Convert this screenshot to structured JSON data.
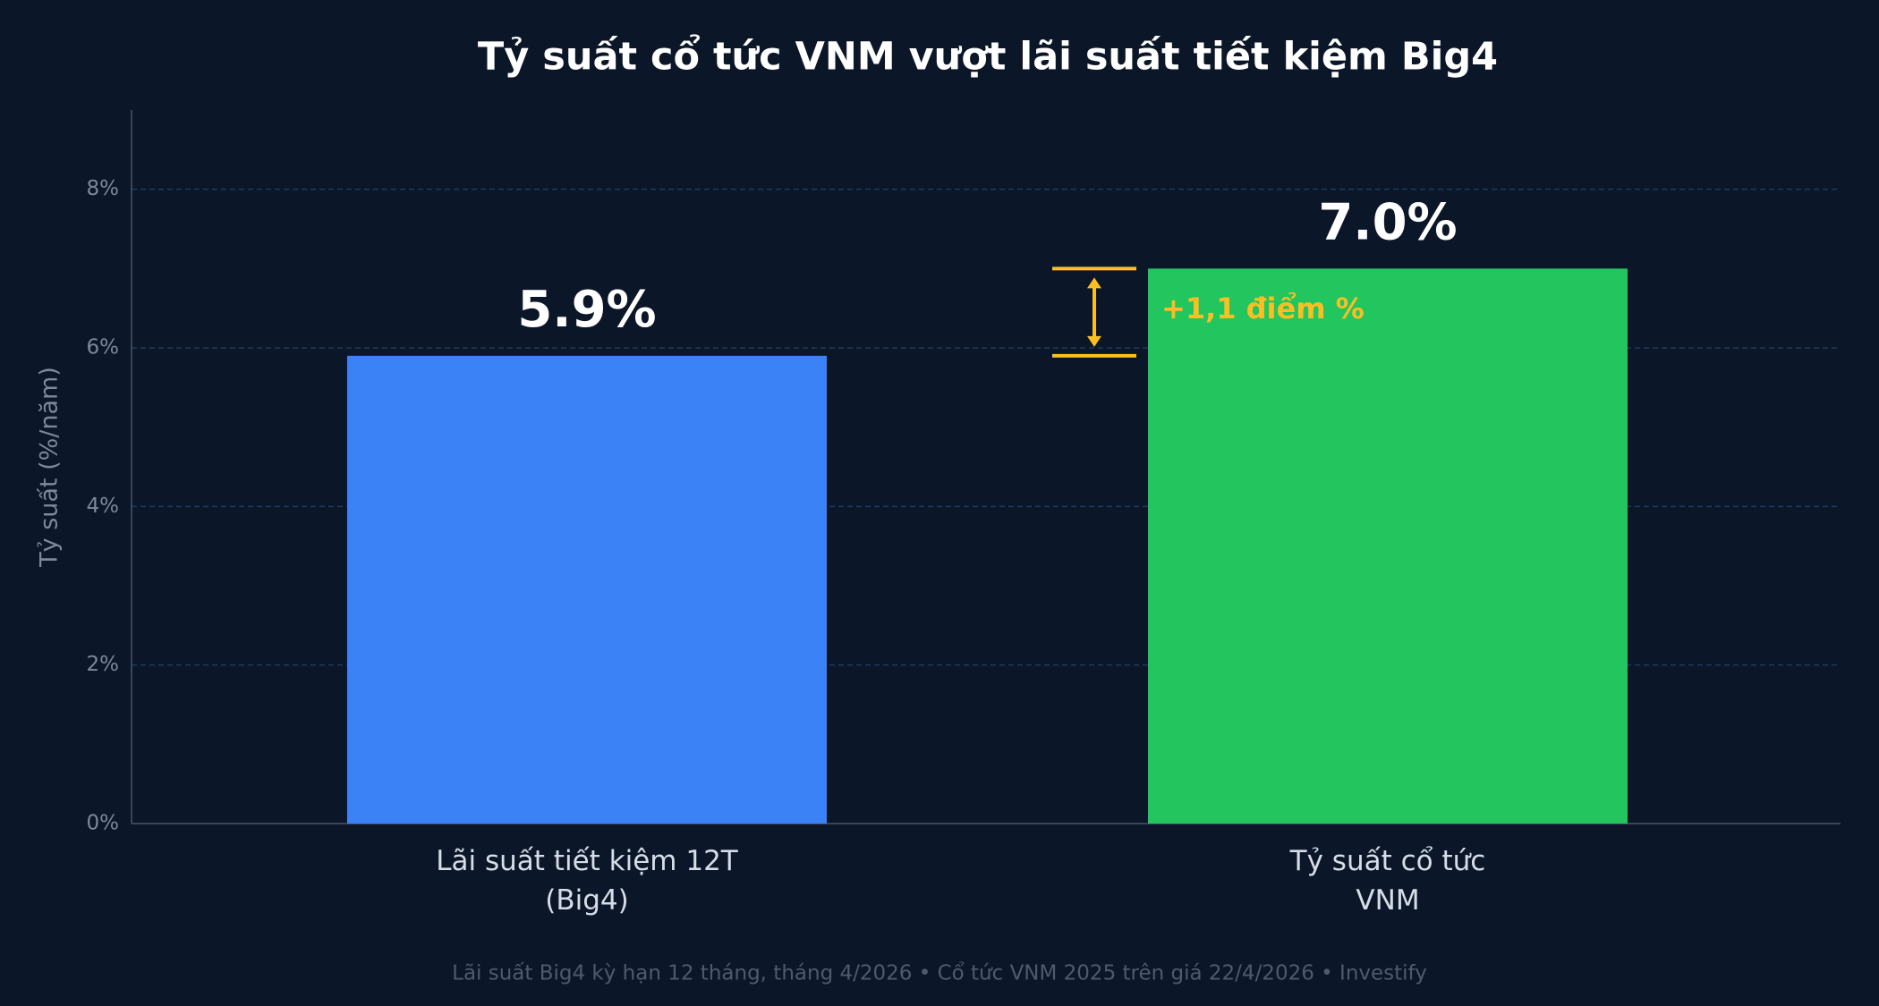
{
  "chart_data": {
    "type": "bar",
    "title": "Tỷ suất cổ tức VNM vượt lãi suất tiết kiệm Big4",
    "y_label": "Tỷ suất (%/năm)",
    "categories": [
      "Lãi suất tiết kiệm 12T\n(Big4)",
      "Tỷ suất cổ tức\nVNM"
    ],
    "values": [
      5.9,
      7.0
    ],
    "value_labels": [
      "5.9%",
      "7.0%"
    ],
    "colors": [
      "#3b82f6",
      "#22c55e"
    ],
    "ylim": [
      0,
      9
    ],
    "yticks": [
      {
        "value": 0,
        "label": "0%"
      },
      {
        "value": 2,
        "label": "2%"
      },
      {
        "value": 4,
        "label": "4%"
      },
      {
        "value": 6,
        "label": "6%"
      },
      {
        "value": 8,
        "label": "8%"
      }
    ],
    "grid": true,
    "annotation": "+1,1 điểm %",
    "footnote": "Lãi suất Big4 kỳ hạn 12 tháng, tháng 4/2026  •  Cổ tức VNM 2025 trên giá 22/4/2026  •  Investify"
  }
}
